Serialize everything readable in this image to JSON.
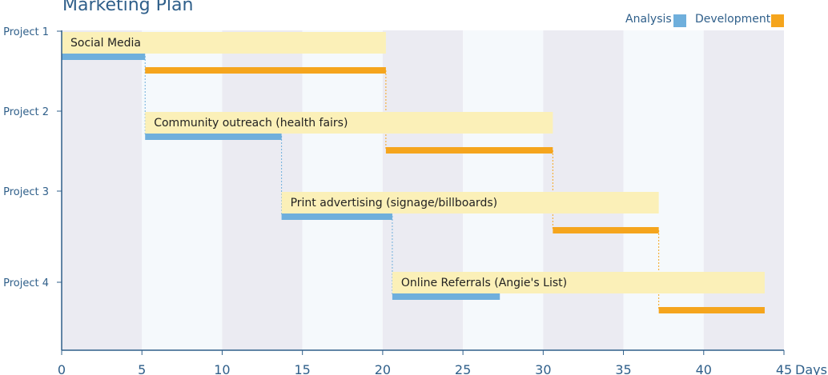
{
  "chart_data": {
    "type": "bar",
    "title": "Marketing Plan",
    "xlabel": "Days",
    "xlim": [
      0,
      45
    ],
    "x_ticks": [
      0,
      5,
      10,
      15,
      20,
      25,
      30,
      35,
      40,
      45
    ],
    "categories": [
      "Project 1",
      "Project 2",
      "Project 3",
      "Project 4"
    ],
    "legend": [
      {
        "name": "Analysis",
        "color": "#6fafdc"
      },
      {
        "name": "Development",
        "color": "#f5a51d"
      }
    ],
    "legend_position": "top-right",
    "task_color": "#fbf0b8",
    "tasks": [
      {
        "project": "Project 1",
        "label": "Social Media",
        "start": 0,
        "end": 20.2,
        "analysis": [
          0,
          5.2
        ],
        "development": [
          5.2,
          20.2
        ]
      },
      {
        "project": "Project 2",
        "label": "Community outreach (health fairs)",
        "start": 5.2,
        "end": 30.6,
        "analysis": [
          5.2,
          13.7
        ],
        "development": [
          20.2,
          30.6
        ]
      },
      {
        "project": "Project 3",
        "label": "Print advertising (signage/billboards)",
        "start": 13.7,
        "end": 37.2,
        "analysis": [
          13.7,
          20.6
        ],
        "development": [
          30.6,
          37.2
        ]
      },
      {
        "project": "Project 4",
        "label": "Online Referrals (Angie's List)",
        "start": 20.6,
        "end": 43.8,
        "analysis": [
          20.6,
          27.3
        ],
        "development": [
          37.2,
          43.8
        ]
      }
    ]
  }
}
